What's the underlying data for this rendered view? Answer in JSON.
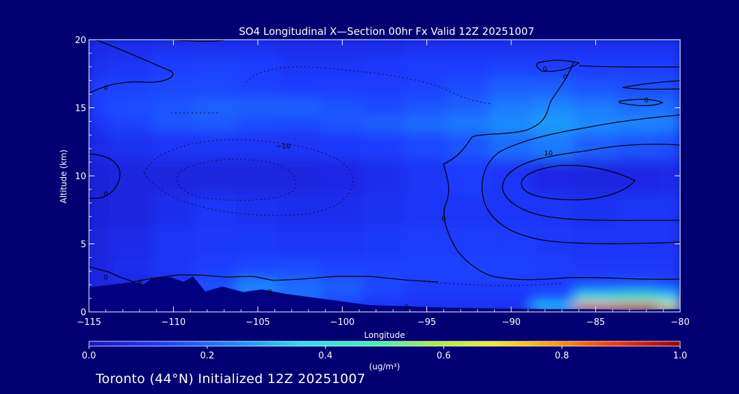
{
  "chart_data": {
    "type": "heatmap",
    "title": "SO4 Longitudinal X—Section 00hr  Fx Valid 12Z 20251007",
    "xlabel": "Longitude",
    "ylabel": "Altitude (km)",
    "xlim": [
      -115,
      -80
    ],
    "ylim": [
      0,
      20
    ],
    "x_ticks": [
      -115,
      -110,
      -105,
      -100,
      -95,
      -90,
      -85,
      -80
    ],
    "x_tick_labels": [
      "−115",
      "−110",
      "−105",
      "−100",
      "−95",
      "−90",
      "−85",
      "−80"
    ],
    "y_ticks": [
      0,
      5,
      10,
      15,
      20
    ],
    "y_tick_labels": [
      "0",
      "5",
      "10",
      "15",
      "20"
    ],
    "colorbar": {
      "label": "(ug/m³)",
      "min": 0.0,
      "max": 1.0,
      "ticks": [
        0.0,
        0.2,
        0.4,
        0.6,
        0.8,
        1.0
      ],
      "tick_labels": [
        "0.0",
        "0.2",
        "0.4",
        "0.6",
        "0.8",
        "1.0"
      ]
    },
    "contour_labels": [
      {
        "text": "0",
        "lon": -114,
        "alt": 16.5
      },
      {
        "text": "0",
        "lon": -114,
        "alt": 8.7
      },
      {
        "text": "0",
        "lon": -114,
        "alt": 2.6
      },
      {
        "text": "0",
        "lon": -112,
        "alt": 2.1
      },
      {
        "text": "0",
        "lon": -104.3,
        "alt": 1.5
      },
      {
        "text": "−10",
        "lon": -103.5,
        "alt": 12.2
      },
      {
        "text": "0",
        "lon": -96.2,
        "alt": 0.4
      },
      {
        "text": "0",
        "lon": -94,
        "alt": 6.9
      },
      {
        "text": "0",
        "lon": -88,
        "alt": 17.9
      },
      {
        "text": "0",
        "lon": -86.8,
        "alt": 17.3
      },
      {
        "text": "0",
        "lon": -82,
        "alt": 15.6
      },
      {
        "text": "10",
        "lon": -87.8,
        "alt": 11.7
      }
    ],
    "concentration_grid": {
      "lon": [
        -115,
        -112.5,
        -110,
        -107.5,
        -105,
        -102.5,
        -100,
        -97.5,
        -95,
        -92.5,
        -90,
        -87.5,
        -85,
        -82.5,
        -80
      ],
      "alt": [
        0.3,
        1,
        2,
        3,
        5,
        7.5,
        10,
        12.5,
        14,
        15,
        16.5,
        18,
        19.5
      ],
      "values": [
        [
          0.05,
          0.05,
          0.1,
          0.08,
          0.1,
          0.15,
          0.12,
          0.1,
          0.1,
          0.1,
          0.1,
          0.35,
          0.85,
          0.9,
          0.7
        ],
        [
          0.05,
          0.06,
          0.08,
          0.12,
          0.22,
          0.2,
          0.15,
          0.12,
          0.1,
          0.1,
          0.1,
          0.15,
          0.4,
          0.45,
          0.35
        ],
        [
          0.05,
          0.06,
          0.09,
          0.16,
          0.24,
          0.2,
          0.18,
          0.14,
          0.12,
          0.12,
          0.12,
          0.12,
          0.15,
          0.16,
          0.14
        ],
        [
          0.05,
          0.08,
          0.1,
          0.12,
          0.14,
          0.15,
          0.13,
          0.13,
          0.13,
          0.13,
          0.13,
          0.12,
          0.11,
          0.11,
          0.11
        ],
        [
          0.05,
          0.07,
          0.1,
          0.11,
          0.11,
          0.1,
          0.1,
          0.11,
          0.12,
          0.12,
          0.12,
          0.11,
          0.1,
          0.1,
          0.1
        ],
        [
          0.04,
          0.05,
          0.08,
          0.1,
          0.09,
          0.08,
          0.08,
          0.09,
          0.1,
          0.1,
          0.1,
          0.1,
          0.09,
          0.1,
          0.1
        ],
        [
          0.04,
          0.05,
          0.05,
          0.05,
          0.05,
          0.05,
          0.06,
          0.08,
          0.1,
          0.12,
          0.1,
          0.06,
          0.05,
          0.06,
          0.07
        ],
        [
          0.07,
          0.09,
          0.1,
          0.1,
          0.1,
          0.1,
          0.11,
          0.12,
          0.14,
          0.16,
          0.2,
          0.22,
          0.18,
          0.16,
          0.15
        ],
        [
          0.1,
          0.13,
          0.16,
          0.17,
          0.15,
          0.14,
          0.16,
          0.18,
          0.2,
          0.22,
          0.25,
          0.27,
          0.25,
          0.24,
          0.23
        ],
        [
          0.13,
          0.15,
          0.16,
          0.18,
          0.18,
          0.18,
          0.16,
          0.14,
          0.16,
          0.18,
          0.22,
          0.24,
          0.22,
          0.2,
          0.2
        ],
        [
          0.12,
          0.13,
          0.14,
          0.14,
          0.13,
          0.12,
          0.12,
          0.12,
          0.13,
          0.15,
          0.18,
          0.18,
          0.16,
          0.15,
          0.15
        ],
        [
          0.09,
          0.1,
          0.12,
          0.13,
          0.12,
          0.1,
          0.1,
          0.11,
          0.12,
          0.12,
          0.13,
          0.12,
          0.12,
          0.12,
          0.12
        ],
        [
          0.07,
          0.08,
          0.09,
          0.09,
          0.09,
          0.08,
          0.08,
          0.08,
          0.09,
          0.09,
          0.09,
          0.09,
          0.09,
          0.09,
          0.09
        ]
      ]
    }
  },
  "footer": {
    "text": "Toronto (44°N) Initialized 12Z 20251007"
  },
  "colors": {
    "background": "#000073",
    "text": "#ffffff",
    "contour": "#000000",
    "terrain": "#000080"
  }
}
